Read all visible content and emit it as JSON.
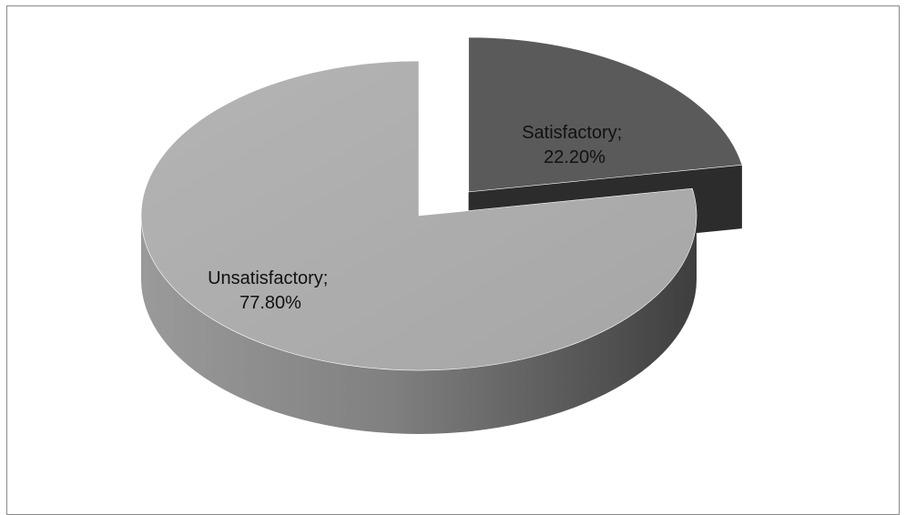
{
  "chart_data": {
    "type": "pie",
    "style": "3d-exploded",
    "legend": "none",
    "slices": [
      {
        "name": "Satisfactory",
        "value": 22.2,
        "label_line1": "Satisfactory;",
        "label_line2": "22.20%",
        "color": "#5a5a5a",
        "side_color": "#2c2c2c",
        "exploded": true
      },
      {
        "name": "Unsatisfactory",
        "value": 77.8,
        "label_line1": "Unsatisfactory;",
        "label_line2": "77.80%",
        "color": "#a9a9a9",
        "side_color": "#6e6e6e",
        "exploded": false
      }
    ]
  }
}
